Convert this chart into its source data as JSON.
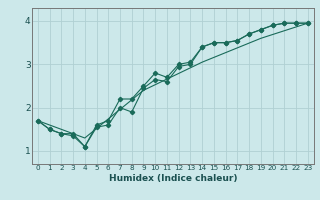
{
  "title": "",
  "xlabel": "Humidex (Indice chaleur)",
  "xlim": [
    -0.5,
    23.5
  ],
  "ylim": [
    0.7,
    4.3
  ],
  "yticks": [
    1,
    2,
    3,
    4
  ],
  "xticks": [
    0,
    1,
    2,
    3,
    4,
    5,
    6,
    7,
    8,
    9,
    10,
    11,
    12,
    13,
    14,
    15,
    16,
    17,
    18,
    19,
    20,
    21,
    22,
    23
  ],
  "bg_color": "#cce8ea",
  "grid_color": "#b0d0d3",
  "line_color": "#1a6b5a",
  "lines": [
    {
      "x": [
        0,
        1,
        2,
        3,
        4,
        5,
        6,
        7,
        8,
        9,
        10,
        11,
        12,
        13,
        14,
        15,
        16,
        17,
        18,
        19,
        20,
        21,
        22,
        23
      ],
      "y": [
        1.7,
        1.5,
        1.4,
        1.4,
        1.1,
        1.6,
        1.7,
        2.2,
        2.2,
        2.5,
        2.8,
        2.7,
        3.0,
        3.05,
        3.4,
        3.5,
        3.5,
        3.55,
        3.7,
        3.8,
        3.9,
        3.95,
        3.95,
        3.95
      ],
      "marker": "D",
      "markersize": 2.2
    },
    {
      "x": [
        0,
        1,
        2,
        3,
        4,
        5,
        6,
        7,
        8,
        9,
        10,
        11,
        12,
        13,
        14,
        15,
        16,
        17,
        18,
        19,
        20,
        21,
        22,
        23
      ],
      "y": [
        1.7,
        1.5,
        1.4,
        1.35,
        1.1,
        1.55,
        1.6,
        2.0,
        1.9,
        2.45,
        2.65,
        2.6,
        2.95,
        3.0,
        3.4,
        3.5,
        3.5,
        3.55,
        3.7,
        3.8,
        3.9,
        3.95,
        3.95,
        3.95
      ],
      "marker": "D",
      "markersize": 2.2
    },
    {
      "x": [
        0,
        4,
        9,
        14,
        19,
        23
      ],
      "y": [
        1.7,
        1.3,
        2.4,
        3.05,
        3.6,
        3.95
      ],
      "marker": null,
      "markersize": 0
    }
  ]
}
